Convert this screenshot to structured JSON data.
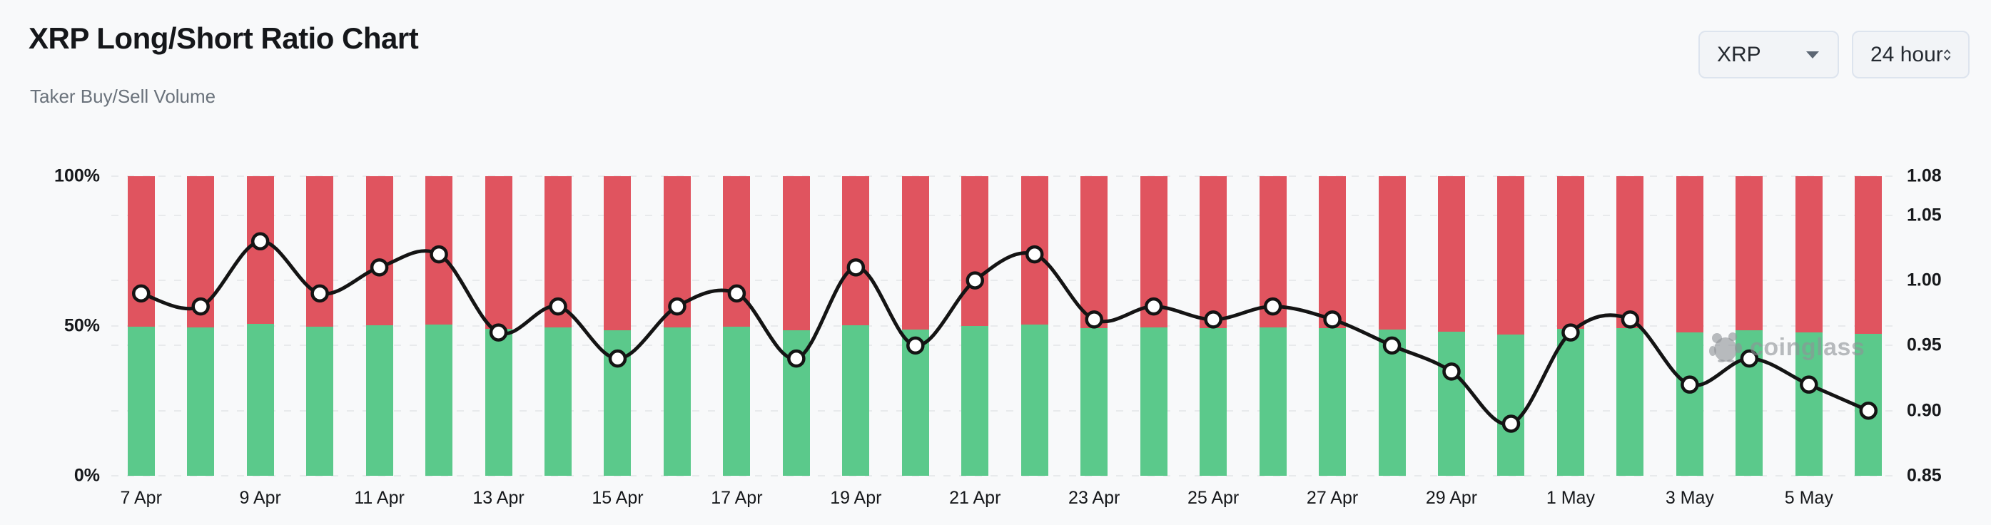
{
  "header": {
    "title": "XRP Long/Short Ratio Chart",
    "subtitle": "Taker Buy/Sell Volume"
  },
  "controls": {
    "symbol": {
      "value": "XRP"
    },
    "interval": {
      "value": "24 hour"
    }
  },
  "icons": {
    "symbol_caret": "chevron-down",
    "interval_spinner": "chevron-up-down",
    "watermark_logo": "panda"
  },
  "watermark": {
    "text": "coinglass"
  },
  "colors": {
    "background": "#f8f9fa",
    "buy_green": "#5bc98b",
    "sell_red": "#e0545f",
    "ratio_line": "#141414",
    "marker_fill": "#ffffff",
    "grid": "#e8eaec",
    "text_dark": "#16181b",
    "text_muted": "#6a727b",
    "button_border": "#dde4ee",
    "button_bg": "#f2f4f7"
  },
  "chart_data": {
    "type": "bar",
    "subtype": "stacked-percent-bars-with-line",
    "categories": [
      "7 Apr",
      "8 Apr",
      "9 Apr",
      "10 Apr",
      "11 Apr",
      "12 Apr",
      "13 Apr",
      "14 Apr",
      "15 Apr",
      "16 Apr",
      "17 Apr",
      "18 Apr",
      "19 Apr",
      "20 Apr",
      "21 Apr",
      "22 Apr",
      "23 Apr",
      "24 Apr",
      "25 Apr",
      "26 Apr",
      "27 Apr",
      "28 Apr",
      "29 Apr",
      "30 Apr",
      "1 May",
      "2 May",
      "3 May",
      "4 May",
      "5 May",
      "6 May"
    ],
    "x_tick_step": 2,
    "series": [
      {
        "name": "Taker Buy Volume %",
        "type": "bar",
        "color": "#5bc98b",
        "values": [
          49.7,
          49.5,
          50.7,
          49.7,
          50.2,
          50.5,
          49.0,
          49.5,
          48.5,
          49.5,
          49.7,
          48.5,
          50.2,
          48.7,
          50.0,
          50.5,
          49.2,
          49.5,
          49.2,
          49.5,
          49.2,
          48.7,
          48.2,
          47.1,
          49.0,
          49.2,
          47.9,
          48.5,
          47.9,
          47.4
        ]
      },
      {
        "name": "Taker Sell Volume %",
        "type": "bar",
        "color": "#e0545f",
        "values": [
          50.3,
          50.5,
          49.3,
          50.3,
          49.8,
          49.5,
          51.0,
          50.5,
          51.5,
          50.5,
          50.3,
          51.5,
          49.8,
          51.3,
          50.0,
          49.5,
          50.8,
          50.5,
          50.8,
          50.5,
          50.8,
          51.3,
          51.8,
          52.9,
          51.0,
          50.8,
          52.1,
          51.5,
          52.1,
          52.6
        ]
      },
      {
        "name": "Long/Short Ratio",
        "type": "line",
        "color": "#141414",
        "axis": "right",
        "values": [
          0.99,
          0.98,
          1.03,
          0.99,
          1.01,
          1.02,
          0.96,
          0.98,
          0.94,
          0.98,
          0.99,
          0.94,
          1.01,
          0.95,
          1.0,
          1.02,
          0.97,
          0.98,
          0.97,
          0.98,
          0.97,
          0.95,
          0.93,
          0.89,
          0.96,
          0.97,
          0.92,
          0.94,
          0.92,
          0.9
        ]
      }
    ],
    "left_axis": {
      "range": [
        0,
        100
      ],
      "tick_values": [
        100,
        50,
        0
      ],
      "tick_labels": [
        "100%",
        "50%",
        "0%"
      ]
    },
    "right_axis": {
      "range": [
        0.85,
        1.08
      ],
      "tick_values": [
        1.08,
        1.05,
        1.0,
        0.95,
        0.9,
        0.85
      ],
      "tick_labels": [
        "1.08",
        "1.05",
        "1.00",
        "0.95",
        "0.90",
        "0.85"
      ]
    },
    "grid": "dashed-horizontal",
    "legend": "none"
  }
}
